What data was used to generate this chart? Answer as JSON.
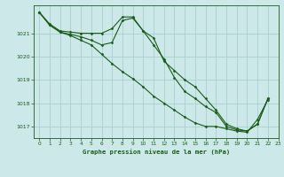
{
  "title": "Graphe pression niveau de la mer (hPa)",
  "background_color": "#cce8e8",
  "grid_color": "#aacece",
  "line_color": "#1a5c1a",
  "marker_color": "#1a5c1a",
  "xlim": [
    -0.5,
    23
  ],
  "ylim": [
    1016.5,
    1022.2
  ],
  "yticks": [
    1017,
    1018,
    1019,
    1020,
    1021
  ],
  "xticks": [
    0,
    1,
    2,
    3,
    4,
    5,
    6,
    7,
    8,
    9,
    10,
    11,
    12,
    13,
    14,
    15,
    16,
    17,
    18,
    19,
    20,
    21,
    22,
    23
  ],
  "series": [
    [
      1021.9,
      1021.4,
      1021.1,
      1021.05,
      1021.0,
      1021.0,
      1021.0,
      1021.2,
      1021.7,
      1021.7,
      1021.1,
      1020.8,
      1019.8,
      1019.4,
      1019.0,
      1018.7,
      1018.2,
      1017.7,
      1017.1,
      1016.9,
      1016.8,
      1017.1,
      1018.2,
      null
    ],
    [
      1021.9,
      1021.35,
      1021.05,
      1020.95,
      1020.85,
      1020.7,
      1020.5,
      1020.6,
      1021.55,
      1021.65,
      1021.1,
      1020.5,
      1019.9,
      1019.1,
      1018.5,
      1018.2,
      1017.85,
      1017.6,
      1017.0,
      1016.85,
      1016.8,
      1017.1,
      1018.2,
      null
    ],
    [
      1021.9,
      1021.35,
      1021.05,
      1020.9,
      1020.7,
      1020.5,
      1020.1,
      1019.7,
      1019.35,
      1019.05,
      1018.7,
      1018.3,
      1018.0,
      1017.7,
      1017.4,
      1017.15,
      1017.0,
      1017.0,
      1016.9,
      1016.8,
      1016.75,
      1017.3,
      1018.15,
      null
    ]
  ]
}
